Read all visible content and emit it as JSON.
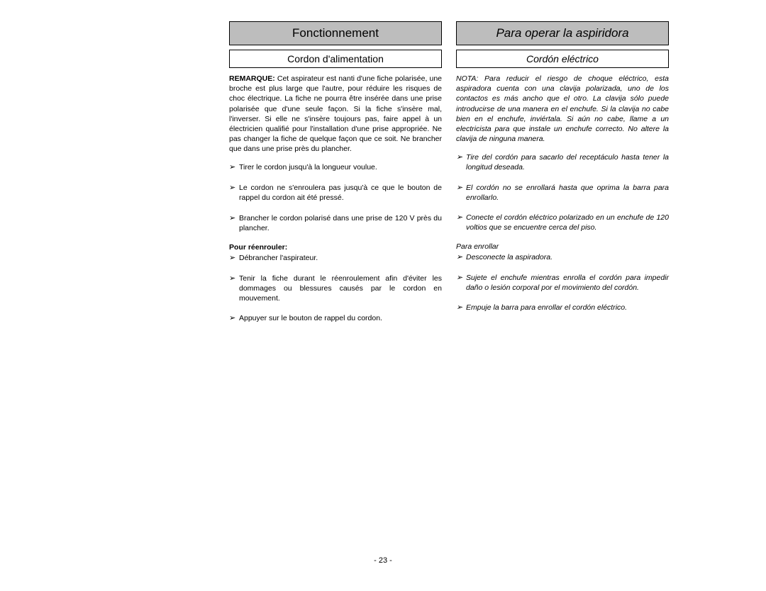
{
  "left": {
    "header": "Fonctionnement",
    "subheader": "Cordon d'alimentation",
    "remark_label": "REMARQUE:",
    "remark_body": " Cet aspirateur est nanti d'une fiche polarisée,  une broche est plus large que l'autre, pour réduire les risques de choc électrique. La fiche ne pourra être insérée dans une prise polarisée que d'une seule façon. Si la fiche s'insère mal, l'inverser. Si elle ne s'insère toujours pas, faire appel à un électricien qualifié pour l'installation d'une prise appropriée. Ne pas changer la fiche de quelque façon que ce soit.  Ne brancher que dans une prise près du plancher.",
    "bullets1": [
      "Tirer le cordon jusqu'à la longueur voulue.",
      "Le cordon ne s'enroulera pas jusqu'à ce que le bouton de rappel du cordon ait été pressé.",
      "Brancher le cordon polarisé dans une prise de 120 V près du plancher."
    ],
    "subhead2": "Pour réenrouler:",
    "bullets2": [
      "Débrancher l'aspirateur.",
      "Tenir la fiche durant le réenroulement afin d'éviter les dommages ou blessures causés par le cordon en mouvement.",
      "Appuyer sur le bouton de rappel du cordon."
    ]
  },
  "right": {
    "header": "Para operar la aspiridora",
    "subheader": "Cordón eléctrico",
    "remark_body": "NOTA: Para reducir el riesgo de choque eléctrico, esta aspiradora cuenta con una clavija polarizada, uno de los contactos es más ancho que el otro. La clavija sólo puede introducirse de una manera en el enchufe. Si la clavija no cabe bien en el enchufe, inviértala. Si aún no cabe, llame a un electricista para que instale un enchufe correcto. No altere la clavija de ninguna manera.",
    "bullets1": [
      "Tire del cordón  para sacarlo del receptáculo hasta tener la longitud deseada.",
      "El cordón no se enrollará hasta que oprima la barra para enrollarlo.",
      "Conecte el  cordón  eléctrico polarizado en un enchufe de 120 voltios que se encuentre cerca del piso."
    ],
    "subhead2": "Para enrollar",
    "bullets2": [
      "Desconecte la aspiradora.",
      "Sujete el enchufe mientras enrolla el cordón para  impedir  daño o lesión corporal por el movimiento del cordón.",
      "Empuje la barra para enrollar el cordón eléctrico."
    ]
  },
  "page_number": "- 23 -"
}
